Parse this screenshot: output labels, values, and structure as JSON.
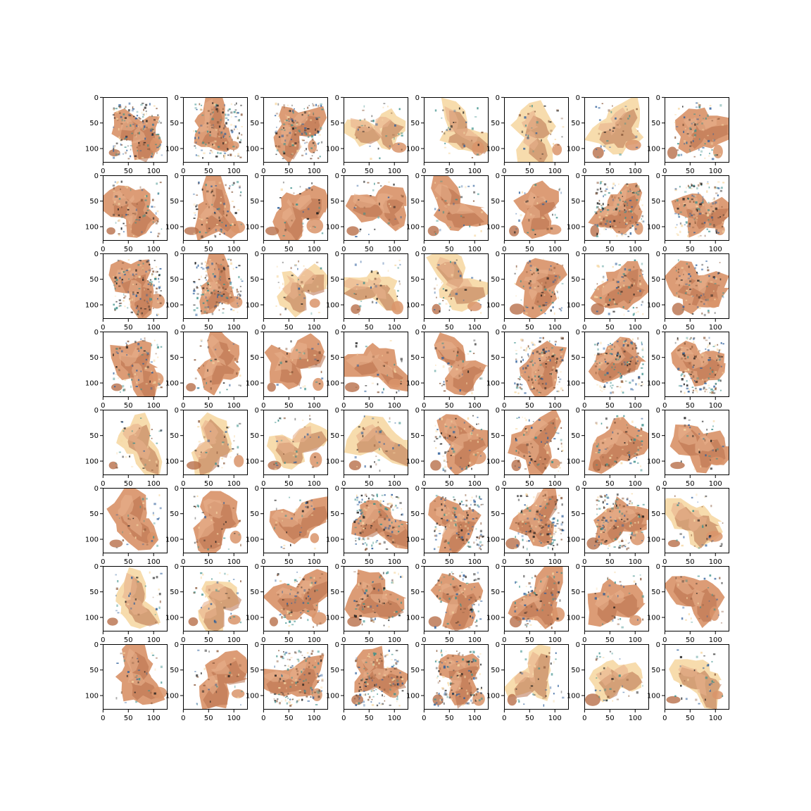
{
  "figure": {
    "background": "#ffffff",
    "grid": {
      "rows": 8,
      "cols": 8
    },
    "subplot": {
      "type": "image",
      "image_extent": [
        0,
        128
      ],
      "x_ticks": [
        0,
        50,
        100
      ],
      "y_ticks": [
        0,
        50,
        100
      ],
      "x_tick_labels": [
        "0",
        "50",
        "100"
      ],
      "y_tick_labels": [
        "0",
        "50",
        "100"
      ],
      "frame_color": "#000000"
    },
    "image_palette": {
      "skin": "#d9946a",
      "skin_dark": "#b86f4a",
      "skin_light": "#e8b08c",
      "shadow": "#8a5a3c",
      "bright": "#f6d9a6",
      "teal": "#3b8f8a",
      "dark": "#1c1c1c",
      "blue": "#2b5d9a"
    }
  }
}
